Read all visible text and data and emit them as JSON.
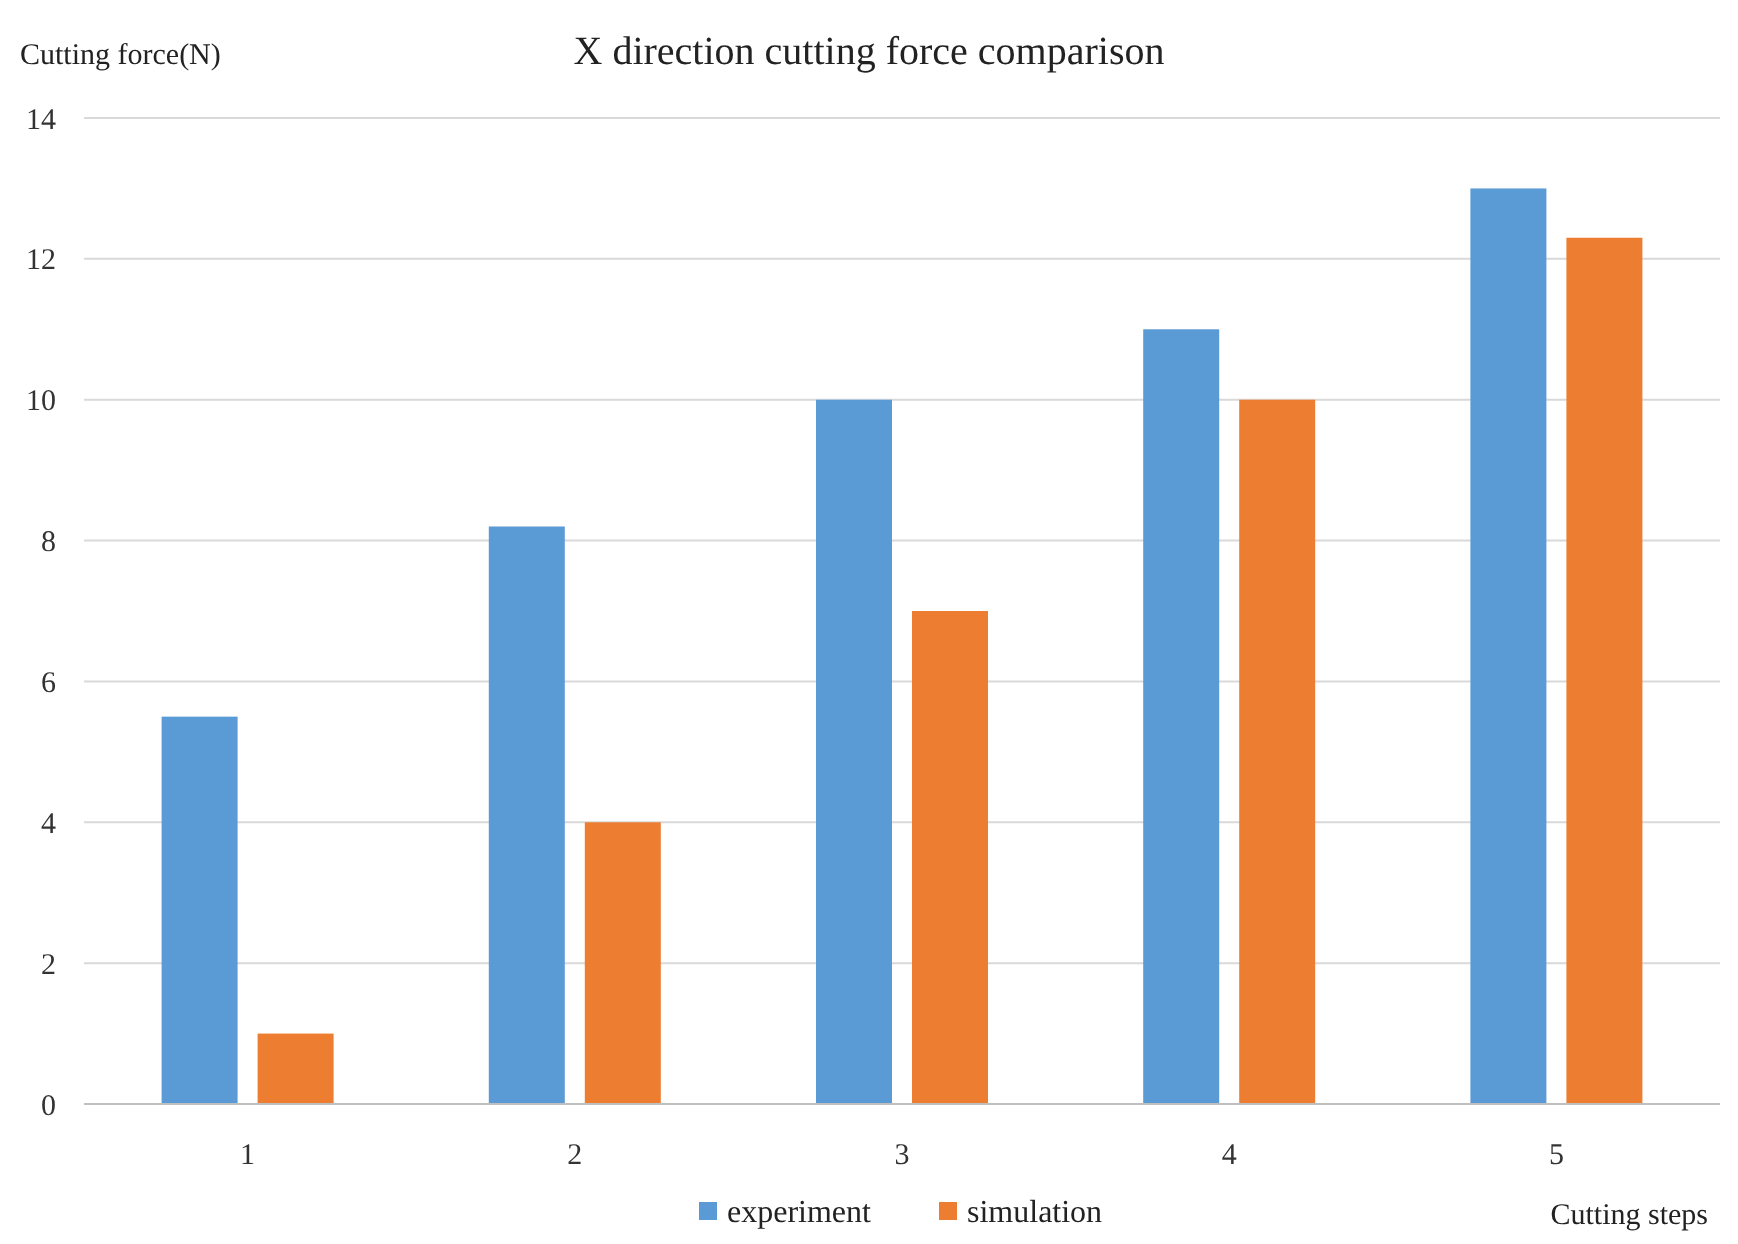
{
  "chart_data": {
    "type": "bar",
    "title": "X direction cutting force comparison",
    "ylabel": "Cutting force(N)",
    "xlabel": "Cutting steps",
    "categories": [
      "1",
      "2",
      "3",
      "4",
      "5"
    ],
    "series": [
      {
        "name": "experiment",
        "color": "#5b9bd5",
        "values": [
          5.5,
          8.2,
          10,
          11,
          13
        ]
      },
      {
        "name": "simulation",
        "color": "#ed7d31",
        "values": [
          1,
          4,
          7,
          10,
          12.3
        ]
      }
    ],
    "ylim": [
      0,
      14
    ],
    "yticks": [
      0,
      2,
      4,
      6,
      8,
      10,
      12,
      14
    ],
    "grid": "y",
    "legend": "bottom"
  }
}
